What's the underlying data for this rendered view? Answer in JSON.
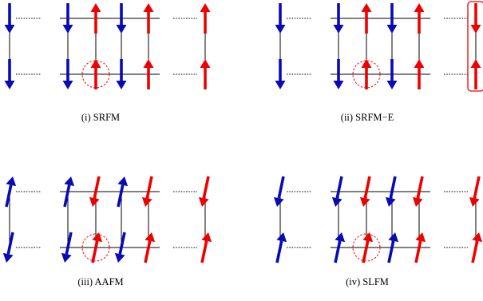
{
  "colors": {
    "blue": "#0a0ab4",
    "red": "#ee0000",
    "line": "#000000"
  },
  "panels": [
    {
      "caption": "(i) SRFM",
      "top": [
        "down",
        "down",
        "up",
        "down",
        "up",
        "up"
      ],
      "bottom": [
        "down",
        "down",
        "up",
        "down",
        "up",
        "up"
      ],
      "top_color": [
        "blue",
        "blue",
        "red",
        "blue",
        "red",
        "red"
      ],
      "bottom_color": [
        "blue",
        "blue",
        "red",
        "blue",
        "red",
        "red"
      ],
      "tilted": false,
      "edge_box": false
    },
    {
      "caption": "(ii) SRFM−E",
      "top": [
        "down",
        "down",
        "up",
        "down",
        "up",
        "down"
      ],
      "bottom": [
        "down",
        "down",
        "up",
        "down",
        "up",
        "up"
      ],
      "top_color": [
        "blue",
        "blue",
        "red",
        "blue",
        "red",
        "red"
      ],
      "bottom_color": [
        "blue",
        "blue",
        "red",
        "blue",
        "red",
        "red"
      ],
      "tilted": false,
      "edge_box": true
    },
    {
      "caption": "(iii) AAFM",
      "top": [
        "up",
        "up",
        "down",
        "up",
        "down",
        "down"
      ],
      "bottom": [
        "down",
        "down",
        "up",
        "down",
        "up",
        "up"
      ],
      "top_color": [
        "blue",
        "blue",
        "red",
        "blue",
        "red",
        "red"
      ],
      "bottom_color": [
        "blue",
        "blue",
        "red",
        "blue",
        "red",
        "red"
      ],
      "tilted": true,
      "edge_box": false
    },
    {
      "caption": "(iv) SLFM",
      "top": [
        "down",
        "down",
        "down",
        "down",
        "down",
        "down"
      ],
      "bottom": [
        "up",
        "up",
        "up",
        "up",
        "up",
        "up"
      ],
      "top_color": [
        "blue",
        "blue",
        "red",
        "blue",
        "red",
        "red"
      ],
      "bottom_color": [
        "blue",
        "blue",
        "red",
        "blue",
        "red",
        "red"
      ],
      "tilted": true,
      "edge_box": false
    }
  ]
}
